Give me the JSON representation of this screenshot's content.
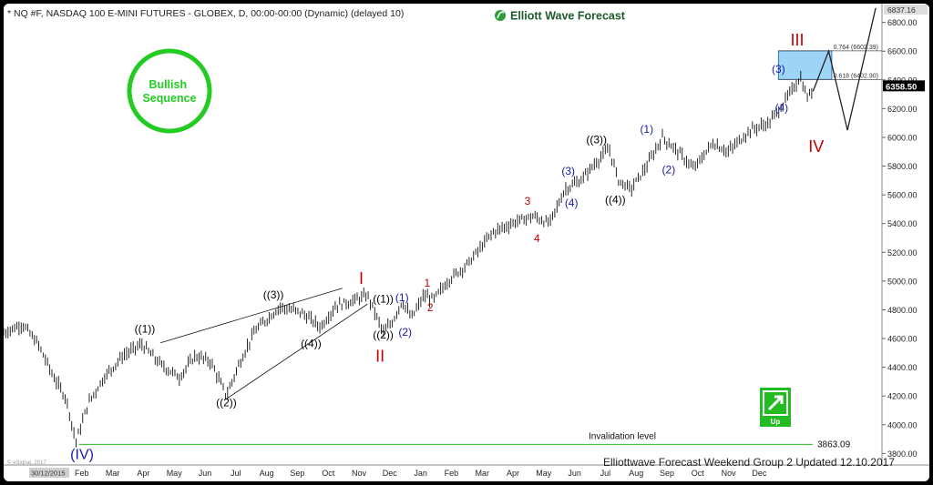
{
  "chart_data": {
    "type": "ohlc-line",
    "title": "* NQ #F, NASDAQ 100 E-MINI FUTURES - GLOBEX, D, 00:00-00:00 (Dynamic) (delayed 10)",
    "brand": "Elliott Wave Forecast",
    "footer": "Elliottwave Forecast Weekend Group 2 Updated 12.10.2017",
    "watermark": "© eSignal, 2017",
    "x_labels": [
      "30/12/2015",
      "Feb",
      "Mar",
      "Apr",
      "May",
      "Jun",
      "Jul",
      "Aug",
      "Sep",
      "Oct",
      "Nov",
      "Dec",
      "Jan",
      "Feb",
      "Mar",
      "Apr",
      "May",
      "Jun",
      "Jul",
      "Aug",
      "Sep",
      "Oct",
      "Nov",
      "Dec"
    ],
    "y_ticks": [
      3800,
      4000,
      4200,
      4400,
      4600,
      4800,
      5000,
      5200,
      5400,
      5600,
      5800,
      6000,
      6200,
      6400,
      6600,
      6800
    ],
    "ylim": [
      3720,
      6880
    ],
    "current_price": 6358.5,
    "top_price_label": "6837.16",
    "price_path": [
      {
        "t": 0,
        "v": 4640
      },
      {
        "t": 6,
        "v": 4700
      },
      {
        "t": 11,
        "v": 4560
      },
      {
        "t": 16,
        "v": 4330
      },
      {
        "t": 20,
        "v": 4180
      },
      {
        "t": 23,
        "v": 3880
      },
      {
        "t": 27,
        "v": 4150
      },
      {
        "t": 32,
        "v": 4330
      },
      {
        "t": 38,
        "v": 4480
      },
      {
        "t": 44,
        "v": 4560
      },
      {
        "t": 50,
        "v": 4420
      },
      {
        "t": 56,
        "v": 4330
      },
      {
        "t": 61,
        "v": 4480
      },
      {
        "t": 66,
        "v": 4440
      },
      {
        "t": 71,
        "v": 4200
      },
      {
        "t": 75,
        "v": 4420
      },
      {
        "t": 80,
        "v": 4650
      },
      {
        "t": 88,
        "v": 4820
      },
      {
        "t": 95,
        "v": 4780
      },
      {
        "t": 101,
        "v": 4680
      },
      {
        "t": 106,
        "v": 4830
      },
      {
        "t": 111,
        "v": 4860
      },
      {
        "t": 116,
        "v": 4900
      },
      {
        "t": 118,
        "v": 4800
      },
      {
        "t": 121,
        "v": 4640
      },
      {
        "t": 124,
        "v": 4720
      },
      {
        "t": 127,
        "v": 4860
      },
      {
        "t": 130,
        "v": 4740
      },
      {
        "t": 134,
        "v": 4900
      },
      {
        "t": 137,
        "v": 4870
      },
      {
        "t": 142,
        "v": 5010
      },
      {
        "t": 148,
        "v": 5120
      },
      {
        "t": 156,
        "v": 5340
      },
      {
        "t": 164,
        "v": 5420
      },
      {
        "t": 169,
        "v": 5450
      },
      {
        "t": 174,
        "v": 5400
      },
      {
        "t": 179,
        "v": 5640
      },
      {
        "t": 184,
        "v": 5700
      },
      {
        "t": 189,
        "v": 5830
      },
      {
        "t": 193,
        "v": 5920
      },
      {
        "t": 196,
        "v": 5700
      },
      {
        "t": 200,
        "v": 5640
      },
      {
        "t": 205,
        "v": 5800
      },
      {
        "t": 210,
        "v": 6000
      },
      {
        "t": 215,
        "v": 5900
      },
      {
        "t": 220,
        "v": 5780
      },
      {
        "t": 226,
        "v": 5960
      },
      {
        "t": 231,
        "v": 5900
      },
      {
        "t": 238,
        "v": 6050
      },
      {
        "t": 244,
        "v": 6100
      },
      {
        "t": 249,
        "v": 6250
      },
      {
        "t": 254,
        "v": 6420
      },
      {
        "t": 256,
        "v": 6280
      },
      {
        "t": 258,
        "v": 6320
      }
    ],
    "target_box": {
      "t_start": 247,
      "t_end": 264,
      "v_low": 6402.9,
      "v_high": 6602.39
    },
    "fib_levels": [
      {
        "label": "0.764 (6602.39)",
        "value": 6602.39
      },
      {
        "label": "0.618 (6402.90)",
        "value": 6402.9
      }
    ],
    "invalidation": {
      "label": "Invalidation level",
      "value": 3863.09,
      "value_label": "3863.09"
    },
    "projection": [
      {
        "t": 258,
        "v": 6320
      },
      {
        "t": 263,
        "v": 6600
      },
      {
        "t": 269,
        "v": 6050
      },
      {
        "t": 278,
        "v": 6900
      }
    ],
    "wave_labels": [
      {
        "text": "(IV)",
        "t": 25,
        "v": 3760,
        "color": "#1a1aa8",
        "size": 16
      },
      {
        "text": "((1))",
        "t": 45,
        "v": 4640,
        "color": "#000",
        "size": 12
      },
      {
        "text": "((2))",
        "t": 71,
        "v": 4130,
        "color": "#000",
        "size": 12
      },
      {
        "text": "((3))",
        "t": 86,
        "v": 4880,
        "color": "#000",
        "size": 12
      },
      {
        "text": "((4))",
        "t": 98,
        "v": 4540,
        "color": "#000",
        "size": 12
      },
      {
        "text": "I",
        "t": 114,
        "v": 4980,
        "color": "#c00000",
        "size": 18
      },
      {
        "text": "II",
        "t": 120,
        "v": 4440,
        "color": "#c00000",
        "size": 18
      },
      {
        "text": "((1))",
        "t": 121,
        "v": 4850,
        "color": "#000",
        "size": 12
      },
      {
        "text": "((2))",
        "t": 121,
        "v": 4600,
        "color": "#000",
        "size": 12
      },
      {
        "text": "(1)",
        "t": 127,
        "v": 4860,
        "color": "#1a1aa8",
        "size": 12
      },
      {
        "text": "(2)",
        "t": 128,
        "v": 4620,
        "color": "#1a1aa8",
        "size": 12
      },
      {
        "text": "1",
        "t": 135,
        "v": 4960,
        "color": "#c00000",
        "size": 12
      },
      {
        "text": "2",
        "t": 136,
        "v": 4790,
        "color": "#c00000",
        "size": 12
      },
      {
        "text": "3",
        "t": 167,
        "v": 5530,
        "color": "#c00000",
        "size": 12
      },
      {
        "text": "4",
        "t": 170,
        "v": 5270,
        "color": "#c00000",
        "size": 12
      },
      {
        "text": "(3)",
        "t": 180,
        "v": 5740,
        "color": "#1a1aa8",
        "size": 12
      },
      {
        "text": "(4)",
        "t": 181,
        "v": 5520,
        "color": "#1a1aa8",
        "size": 12
      },
      {
        "text": "((3))",
        "t": 189,
        "v": 5960,
        "color": "#000",
        "size": 12
      },
      {
        "text": "((4))",
        "t": 195,
        "v": 5540,
        "color": "#000",
        "size": 12
      },
      {
        "text": "(1)",
        "t": 205,
        "v": 6030,
        "color": "#1a1aa8",
        "size": 12
      },
      {
        "text": "(2)",
        "t": 212,
        "v": 5750,
        "color": "#1a1aa8",
        "size": 12
      },
      {
        "text": "(3)",
        "t": 247,
        "v": 6450,
        "color": "#1a1aa8",
        "size": 12
      },
      {
        "text": "(4)",
        "t": 248,
        "v": 6180,
        "color": "#1a1aa8",
        "size": 12
      },
      {
        "text": "III",
        "t": 253,
        "v": 6640,
        "color": "#c00000",
        "size": 18
      },
      {
        "text": "IV",
        "t": 259,
        "v": 5900,
        "color": "#c00000",
        "size": 18
      }
    ],
    "trendlines": [
      {
        "t1": 50,
        "v1": 4570,
        "t2": 108,
        "v2": 4950
      },
      {
        "t1": 71,
        "v1": 4180,
        "t2": 116,
        "v2": 4840
      }
    ],
    "badge": {
      "text": "Bullish Sequence",
      "color": "#22cc22"
    },
    "up_icon": {
      "text": "Up",
      "color": "#22bb22"
    }
  }
}
